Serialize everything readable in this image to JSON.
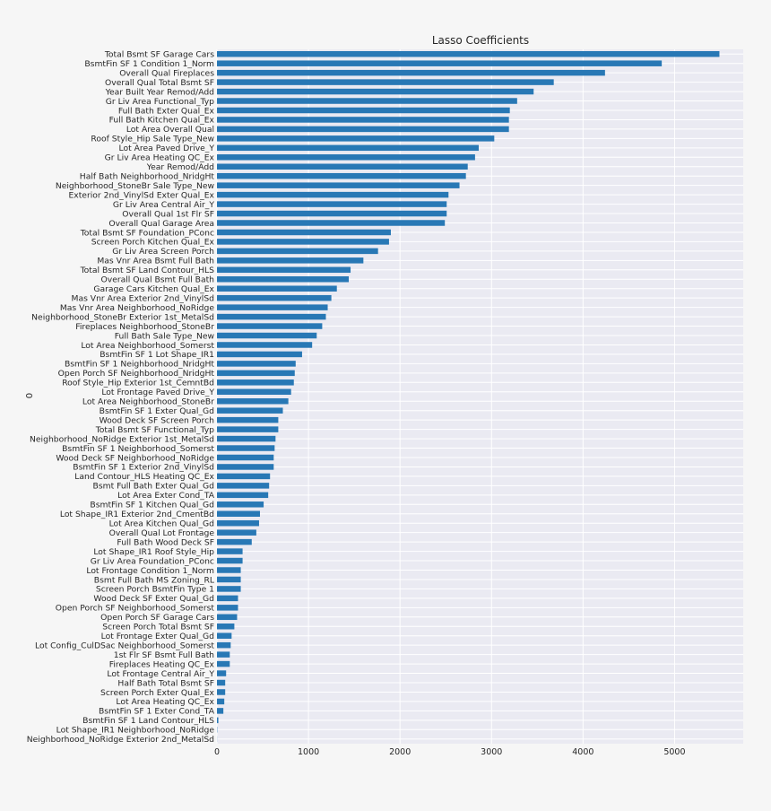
{
  "chart_data": {
    "type": "bar",
    "orientation": "horizontal",
    "title": "Lasso Coefficients",
    "ylabel": "0",
    "xlabel": "",
    "xlim": [
      0,
      5750
    ],
    "xticks": [
      "0",
      "1000",
      "2000",
      "3000",
      "4000",
      "5000"
    ],
    "grid": true,
    "legend": "none",
    "colors": {
      "bar": "#2878b5",
      "plot_bg": "#eaeaf2",
      "grid": "#ffffff",
      "page_bg": "#f6f6f6"
    },
    "categories": [
      "Total Bsmt SF Garage Cars",
      "BsmtFin SF 1 Condition 1_Norm",
      "Overall Qual Fireplaces",
      "Overall Qual Total Bsmt SF",
      "Year Built Year Remod/Add",
      "Gr Liv Area Functional_Typ",
      "Full Bath Exter Qual_Ex",
      "Full Bath Kitchen Qual_Ex",
      "Lot Area Overall Qual",
      "Roof Style_Hip Sale Type_New",
      "Lot Area Paved Drive_Y",
      "Gr Liv Area Heating QC_Ex",
      "Year Remod/Add",
      "Half Bath Neighborhood_NridgHt",
      "Neighborhood_StoneBr Sale Type_New",
      "Exterior 2nd_VinylSd Exter Qual_Ex",
      "Gr Liv Area Central Air_Y",
      "Overall Qual 1st Flr SF",
      "Overall Qual Garage Area",
      "Total Bsmt SF Foundation_PConc",
      "Screen Porch Kitchen Qual_Ex",
      "Gr Liv Area Screen Porch",
      "Mas Vnr Area Bsmt Full Bath",
      "Total Bsmt SF Land Contour_HLS",
      "Overall Qual Bsmt Full Bath",
      "Garage Cars Kitchen Qual_Ex",
      "Mas Vnr Area Exterior 2nd_VinylSd",
      "Mas Vnr Area Neighborhood_NoRidge",
      "Neighborhood_StoneBr Exterior 1st_MetalSd",
      "Fireplaces Neighborhood_StoneBr",
      "Full Bath Sale Type_New",
      "Lot Area Neighborhood_Somerst",
      "BsmtFin SF 1 Lot Shape_IR1",
      "BsmtFin SF 1 Neighborhood_NridgHt",
      "Open Porch SF Neighborhood_NridgHt",
      "Roof Style_Hip Exterior 1st_CemntBd",
      "Lot Frontage Paved Drive_Y",
      "Lot Area Neighborhood_StoneBr",
      "BsmtFin SF 1 Exter Qual_Gd",
      "Wood Deck SF Screen Porch",
      "Total Bsmt SF Functional_Typ",
      "Neighborhood_NoRidge Exterior 1st_MetalSd",
      "BsmtFin SF 1 Neighborhood_Somerst",
      "Wood Deck SF Neighborhood_NoRidge",
      "BsmtFin SF 1 Exterior 2nd_VinylSd",
      "Land Contour_HLS Heating QC_Ex",
      "Bsmt Full Bath Exter Qual_Gd",
      "Lot Area Exter Cond_TA",
      "BsmtFin SF 1 Kitchen Qual_Gd",
      "Lot Shape_IR1 Exterior 2nd_CmentBd",
      "Lot Area Kitchen Qual_Gd",
      "Overall Qual Lot Frontage",
      "Full Bath Wood Deck SF",
      "Lot Shape_IR1 Roof Style_Hip",
      "Gr Liv Area Foundation_PConc",
      "Lot Frontage Condition 1_Norm",
      "Bsmt Full Bath MS Zoning_RL",
      "Screen Porch BsmtFin Type 1",
      "Wood Deck SF Exter Qual_Gd",
      "Open Porch SF Neighborhood_Somerst",
      "Open Porch SF Garage Cars",
      "Screen Porch Total Bsmt SF",
      "Lot Frontage Exter Qual_Gd",
      "Lot Config_CulDSac Neighborhood_Somerst",
      "1st Flr SF Bsmt Full Bath",
      "Fireplaces Heating QC_Ex",
      "Lot Frontage Central Air_Y",
      "Half Bath Total Bsmt SF",
      "Screen Porch Exter Qual_Ex",
      "Lot Area Heating QC_Ex",
      "BsmtFin SF 1 Exter Cond_TA",
      "BsmtFin SF 1 Land Contour_HLS",
      "Lot Shape_IR1 Neighborhood_NoRidge",
      "Neighborhood_NoRidge Exterior 2nd_MetalSd"
    ],
    "values": [
      5490,
      4860,
      4240,
      3680,
      3460,
      3280,
      3200,
      3190,
      3190,
      3030,
      2860,
      2820,
      2740,
      2720,
      2650,
      2530,
      2510,
      2510,
      2490,
      1900,
      1880,
      1760,
      1600,
      1460,
      1440,
      1310,
      1250,
      1210,
      1190,
      1150,
      1090,
      1040,
      930,
      860,
      850,
      840,
      810,
      780,
      720,
      670,
      670,
      640,
      630,
      620,
      620,
      580,
      570,
      560,
      510,
      470,
      460,
      430,
      380,
      280,
      280,
      260,
      260,
      260,
      230,
      230,
      220,
      190,
      160,
      150,
      140,
      140,
      100,
      90,
      90,
      80,
      70,
      15,
      3,
      1
    ]
  }
}
